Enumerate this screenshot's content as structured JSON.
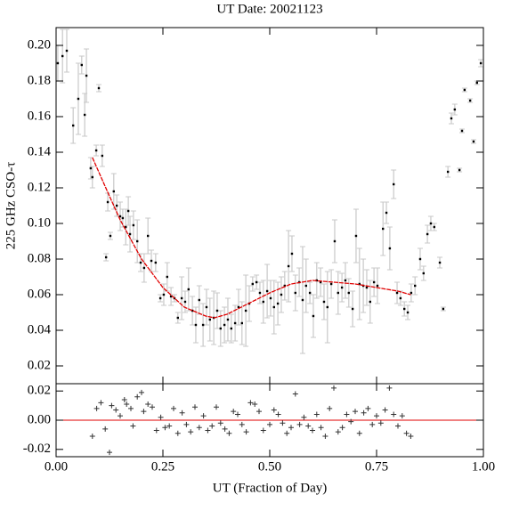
{
  "chart_data": [
    {
      "type": "errorbar",
      "title": "UT Date: 20021123",
      "ylabel": "225 GHz CSO-τ",
      "x": [
        0.004,
        0.015,
        0.025,
        0.04,
        0.052,
        0.06,
        0.067,
        0.071,
        0.081,
        0.085,
        0.094,
        0.1,
        0.108,
        0.117,
        0.121,
        0.127,
        0.135,
        0.142,
        0.15,
        0.156,
        0.163,
        0.169,
        0.173,
        0.181,
        0.19,
        0.198,
        0.206,
        0.215,
        0.223,
        0.233,
        0.244,
        0.252,
        0.26,
        0.269,
        0.277,
        0.285,
        0.294,
        0.302,
        0.31,
        0.319,
        0.327,
        0.335,
        0.344,
        0.352,
        0.36,
        0.369,
        0.377,
        0.385,
        0.394,
        0.402,
        0.41,
        0.419,
        0.427,
        0.435,
        0.444,
        0.452,
        0.46,
        0.469,
        0.477,
        0.485,
        0.494,
        0.502,
        0.51,
        0.519,
        0.527,
        0.535,
        0.544,
        0.552,
        0.56,
        0.569,
        0.577,
        0.585,
        0.594,
        0.602,
        0.61,
        0.619,
        0.627,
        0.635,
        0.644,
        0.652,
        0.66,
        0.669,
        0.677,
        0.685,
        0.694,
        0.702,
        0.71,
        0.719,
        0.727,
        0.735,
        0.744,
        0.752,
        0.765,
        0.773,
        0.781,
        0.79,
        0.798,
        0.806,
        0.815,
        0.823,
        0.831,
        0.84,
        0.852,
        0.86,
        0.869,
        0.877,
        0.885,
        0.898,
        0.906,
        0.917,
        0.925,
        0.933,
        0.944,
        0.95,
        0.956,
        0.969,
        0.977,
        0.985,
        0.994
      ],
      "values": [
        0.19,
        0.194,
        0.197,
        0.155,
        0.17,
        0.189,
        0.161,
        0.183,
        0.131,
        0.126,
        0.141,
        0.176,
        0.138,
        0.081,
        0.112,
        0.093,
        0.118,
        0.11,
        0.104,
        0.103,
        0.098,
        0.107,
        0.094,
        0.099,
        0.09,
        0.078,
        0.075,
        0.093,
        0.079,
        0.078,
        0.058,
        0.06,
        0.07,
        0.059,
        0.058,
        0.047,
        0.058,
        0.056,
        0.063,
        0.051,
        0.043,
        0.057,
        0.043,
        0.053,
        0.046,
        0.047,
        0.051,
        0.041,
        0.043,
        0.046,
        0.041,
        0.044,
        0.053,
        0.044,
        0.051,
        0.055,
        0.066,
        0.067,
        0.061,
        0.056,
        0.062,
        0.058,
        0.053,
        0.055,
        0.06,
        0.065,
        0.076,
        0.083,
        0.061,
        0.067,
        0.057,
        0.065,
        0.061,
        0.048,
        0.068,
        0.067,
        0.056,
        0.053,
        0.066,
        0.09,
        0.061,
        0.064,
        0.068,
        0.061,
        0.052,
        0.093,
        0.066,
        0.065,
        0.064,
        0.056,
        0.067,
        0.065,
        0.097,
        0.106,
        0.086,
        0.122,
        0.061,
        0.058,
        0.052,
        0.05,
        0.061,
        0.065,
        0.08,
        0.072,
        0.094,
        0.1,
        0.098,
        0.078,
        0.052,
        0.129,
        0.159,
        0.164,
        0.13,
        0.152,
        0.175,
        0.169,
        0.146,
        0.179,
        0.19
      ],
      "errors": [
        0.01,
        0.015,
        0.012,
        0.01,
        0.02,
        0.005,
        0.012,
        0.015,
        0.006,
        0.006,
        0.003,
        0.002,
        0.006,
        0.002,
        0.005,
        0.002,
        0.01,
        0.006,
        0.008,
        0.005,
        0.01,
        0.008,
        0.01,
        0.008,
        0.012,
        0.005,
        0.008,
        0.01,
        0.006,
        0.005,
        0.002,
        0.006,
        0.008,
        0.005,
        0.002,
        0.003,
        0.012,
        0.006,
        0.012,
        0.008,
        0.01,
        0.008,
        0.012,
        0.01,
        0.012,
        0.015,
        0.01,
        0.01,
        0.01,
        0.012,
        0.008,
        0.01,
        0.01,
        0.012,
        0.02,
        0.01,
        0.004,
        0.004,
        0.006,
        0.012,
        0.015,
        0.01,
        0.015,
        0.012,
        0.01,
        0.008,
        0.02,
        0.01,
        0.01,
        0.008,
        0.03,
        0.015,
        0.006,
        0.012,
        0.01,
        0.008,
        0.01,
        0.02,
        0.008,
        0.012,
        0.012,
        0.008,
        0.01,
        0.008,
        0.01,
        0.015,
        0.02,
        0.015,
        0.01,
        0.012,
        0.008,
        0.01,
        0.015,
        0.006,
        0.012,
        0.008,
        0.006,
        0.004,
        0.004,
        0.004,
        0.005,
        0.005,
        0.006,
        0.004,
        0.005,
        0.004,
        0.002,
        0.003,
        0.001,
        0.003,
        0.003,
        0.003,
        0.001,
        0.001,
        0.001,
        0.001,
        0.001,
        0.001,
        0.002
      ],
      "color": "#000000",
      "error_color": "#c8c8c8",
      "fit": {
        "x": [
          0.085,
          0.12,
          0.15,
          0.2,
          0.25,
          0.3,
          0.35,
          0.37,
          0.4,
          0.45,
          0.5,
          0.55,
          0.6,
          0.65,
          0.7,
          0.75,
          0.8,
          0.83
        ],
        "values": [
          0.137,
          0.118,
          0.102,
          0.08,
          0.064,
          0.053,
          0.048,
          0.047,
          0.049,
          0.055,
          0.061,
          0.066,
          0.068,
          0.067,
          0.066,
          0.064,
          0.062,
          0.06
        ],
        "color": "#e00000"
      },
      "xlim": [
        0,
        1
      ],
      "ylim": [
        0.01,
        0.21
      ],
      "yticks": [
        0.02,
        0.04,
        0.06,
        0.08,
        {
          "value": 0.1,
          "label": "0.10"
        },
        0.12,
        0.14,
        0.16,
        0.18,
        {
          "value": 0.2,
          "label": "0.20"
        }
      ]
    },
    {
      "type": "residual",
      "xlabel": "UT (Fraction of Day)",
      "x": [
        0.085,
        0.095,
        0.105,
        0.115,
        0.125,
        0.13,
        0.14,
        0.15,
        0.16,
        0.165,
        0.175,
        0.18,
        0.19,
        0.2,
        0.205,
        0.215,
        0.225,
        0.235,
        0.245,
        0.255,
        0.265,
        0.275,
        0.285,
        0.295,
        0.305,
        0.315,
        0.325,
        0.335,
        0.345,
        0.355,
        0.365,
        0.375,
        0.385,
        0.395,
        0.405,
        0.415,
        0.425,
        0.435,
        0.445,
        0.455,
        0.465,
        0.475,
        0.485,
        0.5,
        0.51,
        0.52,
        0.53,
        0.54,
        0.55,
        0.56,
        0.57,
        0.58,
        0.59,
        0.6,
        0.61,
        0.62,
        0.63,
        0.64,
        0.65,
        0.66,
        0.67,
        0.68,
        0.69,
        0.7,
        0.71,
        0.72,
        0.73,
        0.74,
        0.75,
        0.76,
        0.77,
        0.78,
        0.79,
        0.8,
        0.81,
        0.82,
        0.83
      ],
      "values": [
        -0.011,
        0.008,
        0.012,
        -0.006,
        -0.022,
        0.01,
        0.007,
        0.003,
        0.014,
        0.011,
        0.008,
        -0.004,
        0.016,
        0.019,
        0.006,
        0.011,
        0.009,
        -0.007,
        0.002,
        -0.005,
        -0.004,
        0.008,
        -0.009,
        0.005,
        -0.003,
        -0.008,
        0.009,
        -0.005,
        0.003,
        -0.007,
        -0.004,
        0.009,
        -0.002,
        -0.006,
        -0.009,
        0.006,
        0.004,
        -0.003,
        -0.008,
        0.012,
        0.011,
        0.006,
        -0.007,
        -0.003,
        0.007,
        0.004,
        -0.002,
        -0.009,
        -0.005,
        0.018,
        -0.003,
        0.002,
        -0.004,
        -0.007,
        0.004,
        -0.005,
        -0.011,
        0.008,
        0.022,
        -0.008,
        -0.005,
        0.004,
        -0.001,
        0.006,
        -0.009,
        0.005,
        0.008,
        -0.003,
        0.003,
        -0.002,
        0.007,
        0.022,
        0.004,
        -0.004,
        0.003,
        -0.009,
        -0.011
      ],
      "color": "#333333",
      "zero_color": "#e00000",
      "xlim": [
        0,
        1
      ],
      "ylim": [
        -0.025,
        0.025
      ],
      "xticks": [
        {
          "value": 0,
          "label": "0.00"
        },
        0.25,
        {
          "value": 0.5,
          "label": "0.50"
        },
        0.75,
        {
          "value": 1,
          "label": "1.00"
        }
      ],
      "yticks": [
        0.02,
        {
          "value": 0,
          "label": "0.00"
        },
        -0.02
      ]
    }
  ]
}
